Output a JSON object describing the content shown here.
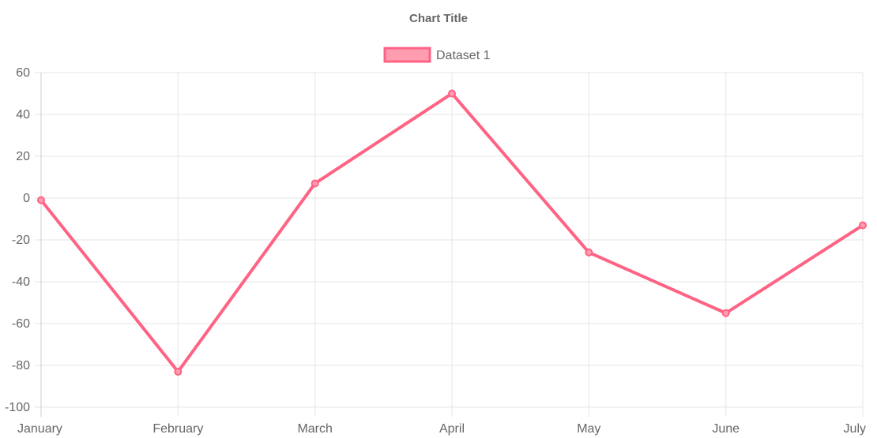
{
  "chart_data": {
    "type": "line",
    "title": "Chart Title",
    "categories": [
      "January",
      "February",
      "March",
      "April",
      "May",
      "June",
      "July"
    ],
    "ylim": [
      -100,
      60
    ],
    "yticks": [
      60,
      40,
      20,
      0,
      -20,
      -40,
      -60,
      -80,
      -100
    ],
    "grid": true,
    "legend_placement": "top",
    "series": [
      {
        "name": "Dataset 1",
        "values": [
          -1,
          -83,
          7,
          50,
          -26,
          -55,
          -13
        ],
        "border_color": "#ff6384",
        "fill_color": "#ff9db0"
      }
    ],
    "colors": {
      "grid": "#e5e5e5",
      "axis": "#cccccc",
      "text": "#666666"
    }
  }
}
